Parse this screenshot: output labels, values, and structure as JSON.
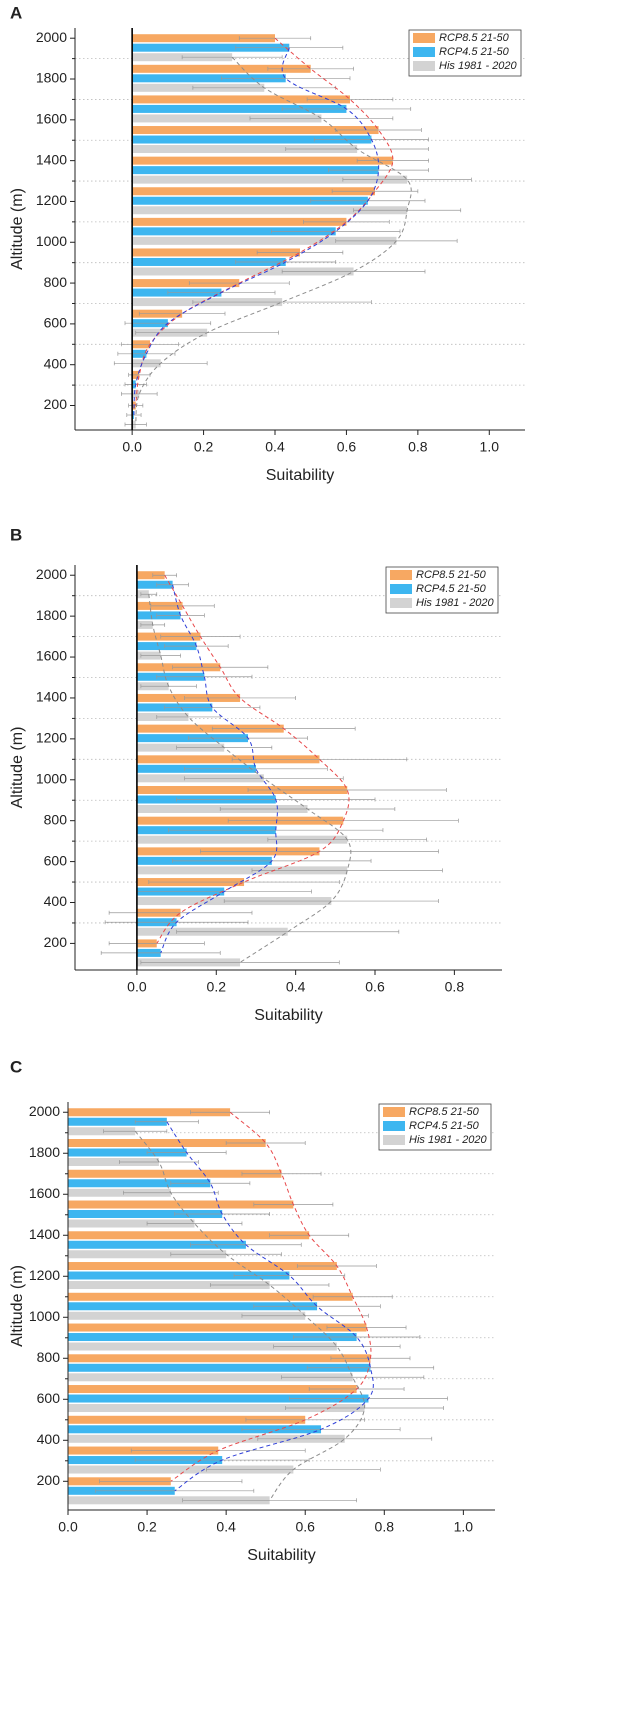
{
  "chart_data": [
    {
      "type": "hbar",
      "title": "A",
      "xlabel": "Suitability",
      "ylabel": "Altitude (m)",
      "y": [
        2000,
        1850,
        1700,
        1550,
        1400,
        1250,
        1100,
        950,
        800,
        650,
        500,
        350,
        200
      ],
      "xlim": [
        -0.16,
        1.1
      ],
      "xticks": [
        {
          "value": 0,
          "label": "0.0"
        },
        0.2,
        0.4,
        0.6,
        0.8,
        {
          "value": 1,
          "label": "1.0"
        }
      ],
      "ylim": [
        80,
        2050
      ],
      "yticks": [
        200,
        400,
        600,
        800,
        1000,
        1200,
        1400,
        1600,
        1800,
        2000
      ],
      "minor_grid": [
        300,
        500,
        700,
        900,
        1100,
        1300,
        1500,
        1700,
        1900
      ],
      "legend": "upper right",
      "series": [
        {
          "name": "RCP8.5 21-50",
          "color": "#f7a862",
          "curve_color": "#e8484a",
          "values": [
            0.4,
            0.5,
            0.61,
            0.69,
            0.73,
            0.68,
            0.6,
            0.47,
            0.3,
            0.14,
            0.05,
            0.02,
            0.01
          ],
          "errors": [
            0.1,
            0.12,
            0.12,
            0.12,
            0.1,
            0.12,
            0.12,
            0.12,
            0.14,
            0.12,
            0.08,
            0.03,
            0.02
          ]
        },
        {
          "name": "RCP4.5 21-50",
          "color": "#3db6f0",
          "curve_color": "#2f3fd8",
          "values": [
            0.44,
            0.43,
            0.6,
            0.67,
            0.69,
            0.66,
            0.57,
            0.43,
            0.25,
            0.1,
            0.04,
            0.01,
            0.005
          ],
          "errors": [
            0.15,
            0.18,
            0.18,
            0.16,
            0.14,
            0.16,
            0.18,
            0.14,
            0.15,
            0.12,
            0.08,
            0.03,
            0.02
          ]
        },
        {
          "name": "His 1981 - 2020",
          "color": "#d3d3d3",
          "curve_color": "#8c8c8c",
          "values": [
            0.28,
            0.37,
            0.53,
            0.63,
            0.77,
            0.77,
            0.74,
            0.62,
            0.42,
            0.21,
            0.08,
            0.02,
            0.01
          ],
          "errors": [
            0.14,
            0.2,
            0.2,
            0.2,
            0.18,
            0.15,
            0.17,
            0.2,
            0.25,
            0.2,
            0.13,
            0.05,
            0.03
          ]
        }
      ]
    },
    {
      "type": "hbar",
      "title": "B",
      "xlabel": "Suitability",
      "ylabel": "Altitude (m)",
      "y": [
        2000,
        1850,
        1700,
        1550,
        1400,
        1250,
        1100,
        950,
        800,
        650,
        500,
        350,
        200
      ],
      "xlim": [
        -0.156,
        0.92
      ],
      "xticks": [
        {
          "value": 0,
          "label": "0.0"
        },
        0.2,
        0.4,
        0.6,
        0.8
      ],
      "ylim": [
        70,
        2050
      ],
      "yticks": [
        200,
        400,
        600,
        800,
        1000,
        1200,
        1400,
        1600,
        1800,
        2000
      ],
      "minor_grid": [
        300,
        500,
        700,
        900,
        1100,
        1300,
        1500,
        1700,
        1900
      ],
      "legend": "upper right",
      "series": [
        {
          "name": "RCP8.5 21-50",
          "color": "#f7a862",
          "curve_color": "#e8484a",
          "values": [
            0.07,
            0.115,
            0.16,
            0.21,
            0.26,
            0.37,
            0.46,
            0.53,
            0.52,
            0.46,
            0.27,
            0.11,
            0.05
          ],
          "errors": [
            0.03,
            0.08,
            0.1,
            0.12,
            0.14,
            0.18,
            0.22,
            0.25,
            0.29,
            0.3,
            0.24,
            0.18,
            0.12
          ]
        },
        {
          "name": "RCP4.5 21-50",
          "color": "#3db6f0",
          "curve_color": "#2f3fd8",
          "values": [
            0.09,
            0.11,
            0.15,
            0.17,
            0.19,
            0.28,
            0.3,
            0.35,
            0.35,
            0.34,
            0.22,
            0.1,
            0.06
          ],
          "errors": [
            0.04,
            0.06,
            0.08,
            0.12,
            0.12,
            0.15,
            0.18,
            0.25,
            0.27,
            0.25,
            0.22,
            0.18,
            0.15
          ]
        },
        {
          "name": "His 1981 - 2020",
          "color": "#d3d3d3",
          "curve_color": "#8c8c8c",
          "values": [
            0.03,
            0.04,
            0.06,
            0.08,
            0.13,
            0.22,
            0.32,
            0.43,
            0.53,
            0.53,
            0.49,
            0.38,
            0.26
          ],
          "errors": [
            0.02,
            0.03,
            0.05,
            0.07,
            0.08,
            0.12,
            0.2,
            0.22,
            0.2,
            0.24,
            0.27,
            0.28,
            0.25
          ]
        }
      ]
    },
    {
      "type": "hbar",
      "title": "C",
      "xlabel": "Suitability",
      "ylabel": "Altitude (m)",
      "y": [
        2000,
        1850,
        1700,
        1550,
        1400,
        1250,
        1100,
        950,
        800,
        650,
        500,
        350,
        200
      ],
      "xlim": [
        0,
        1.08
      ],
      "xticks": [
        {
          "value": 0,
          "label": "0.0"
        },
        0.2,
        0.4,
        0.6,
        0.8,
        {
          "value": 1,
          "label": "1.0"
        }
      ],
      "ylim": [
        60,
        2050
      ],
      "yticks": [
        200,
        400,
        600,
        800,
        1000,
        1200,
        1400,
        1600,
        1800,
        2000
      ],
      "minor_grid": [
        300,
        500,
        700,
        900,
        1100,
        1300,
        1500,
        1700,
        1900
      ],
      "legend": "upper right",
      "series": [
        {
          "name": "RCP8.5 21-50",
          "color": "#f7a862",
          "curve_color": "#e8484a",
          "values": [
            0.41,
            0.5,
            0.54,
            0.57,
            0.61,
            0.68,
            0.72,
            0.755,
            0.765,
            0.73,
            0.6,
            0.38,
            0.26
          ],
          "errors": [
            0.1,
            0.1,
            0.1,
            0.1,
            0.1,
            0.1,
            0.1,
            0.1,
            0.1,
            0.12,
            0.15,
            0.22,
            0.18
          ]
        },
        {
          "name": "RCP4.5 21-50",
          "color": "#3db6f0",
          "curve_color": "#2f3fd8",
          "values": [
            0.25,
            0.3,
            0.36,
            0.39,
            0.45,
            0.56,
            0.63,
            0.73,
            0.765,
            0.76,
            0.64,
            0.39,
            0.27
          ],
          "errors": [
            0.08,
            0.1,
            0.1,
            0.12,
            0.14,
            0.14,
            0.16,
            0.16,
            0.16,
            0.2,
            0.2,
            0.22,
            0.2
          ]
        },
        {
          "name": "His 1981 - 2020",
          "color": "#d3d3d3",
          "curve_color": "#8c8c8c",
          "values": [
            0.17,
            0.23,
            0.26,
            0.32,
            0.4,
            0.51,
            0.6,
            0.68,
            0.72,
            0.75,
            0.7,
            0.57,
            0.51
          ],
          "errors": [
            0.08,
            0.1,
            0.12,
            0.12,
            0.14,
            0.15,
            0.16,
            0.16,
            0.18,
            0.2,
            0.22,
            0.22,
            0.22
          ]
        }
      ]
    }
  ]
}
